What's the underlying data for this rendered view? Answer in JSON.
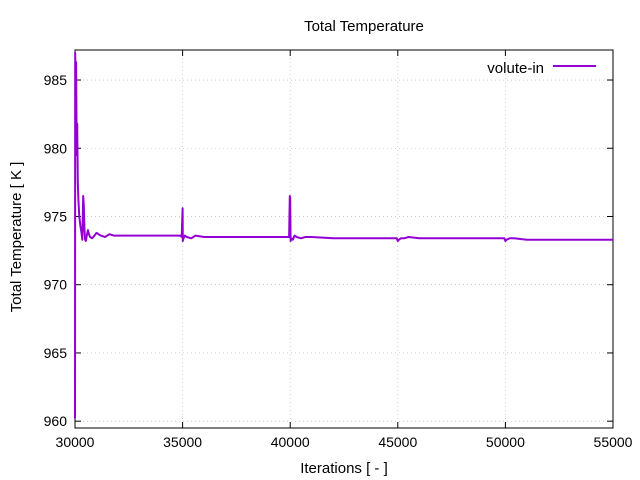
{
  "chart_data": {
    "type": "line",
    "title": "Total Temperature",
    "xlabel": "Iterations [ - ]",
    "ylabel": "Total Temperature [ K ]",
    "xlim": [
      30000,
      55000
    ],
    "ylim": [
      959.5,
      987.2
    ],
    "xticks": [
      30000,
      35000,
      40000,
      45000,
      50000,
      55000
    ],
    "yticks": [
      960,
      965,
      970,
      975,
      980,
      985
    ],
    "grid": true,
    "legend_position": "top-right",
    "series": [
      {
        "name": "volute-in",
        "color": "#9400d3",
        "x": [
          30000,
          30010,
          30030,
          30050,
          30080,
          30100,
          30130,
          30160,
          30200,
          30250,
          30300,
          30340,
          30380,
          30410,
          30440,
          30470,
          30500,
          30550,
          30600,
          30650,
          30700,
          30800,
          30900,
          31000,
          31200,
          31400,
          31600,
          31800,
          32000,
          32500,
          33000,
          34000,
          34900,
          34960,
          35000,
          35010,
          35040,
          35100,
          35200,
          35400,
          35600,
          36000,
          37000,
          38000,
          39000,
          39950,
          39980,
          40000,
          40020,
          40060,
          40120,
          40200,
          40300,
          40500,
          40700,
          41000,
          42000,
          43000,
          44000,
          44950,
          45000,
          45050,
          45150,
          45300,
          45500,
          46000,
          47000,
          48000,
          49000,
          49950,
          50000,
          50050,
          50200,
          50400,
          51000,
          52000,
          53000,
          54000,
          55000
        ],
        "y": [
          960.2,
          987.0,
          984.5,
          986.3,
          979.5,
          981.8,
          977.5,
          976.2,
          975.0,
          974.3,
          973.8,
          973.3,
          976.5,
          975.8,
          974.0,
          973.3,
          973.2,
          973.6,
          974.0,
          973.7,
          973.5,
          973.4,
          973.6,
          973.8,
          973.6,
          973.5,
          973.7,
          973.6,
          973.6,
          973.6,
          973.6,
          973.6,
          973.6,
          973.5,
          975.6,
          973.2,
          973.4,
          973.6,
          973.5,
          973.4,
          973.6,
          973.5,
          973.5,
          973.5,
          973.5,
          973.5,
          976.5,
          976.3,
          973.2,
          973.4,
          973.3,
          973.6,
          973.5,
          973.4,
          973.5,
          973.5,
          973.4,
          973.4,
          973.4,
          973.4,
          973.2,
          973.3,
          973.4,
          973.4,
          973.5,
          973.4,
          973.4,
          973.4,
          973.4,
          973.4,
          973.2,
          973.3,
          973.4,
          973.4,
          973.3,
          973.3,
          973.3,
          973.3,
          973.3
        ]
      }
    ]
  }
}
